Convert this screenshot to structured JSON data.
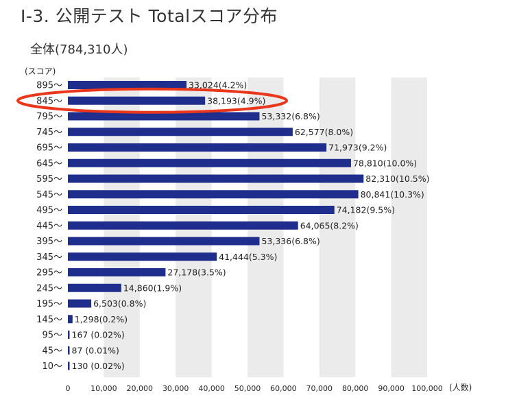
{
  "header": {
    "title": "Ⅰ-3. 公開テスト Totalスコア分布",
    "subtitle": "全体(784,310人)"
  },
  "colors": {
    "bar": "#1f2e8c",
    "band": "#ebebeb",
    "highlight": "#e8371b"
  },
  "chart_data": {
    "type": "bar",
    "orientation": "horizontal",
    "ylabel": "(スコア)",
    "xlabel": "(人数)",
    "xlim": [
      0,
      100000
    ],
    "xticks": [
      "0",
      "10,000",
      "20,000",
      "30,000",
      "40,000",
      "50,000",
      "60,000",
      "70,000",
      "80,000",
      "90,000",
      "100,000"
    ],
    "categories": [
      "895〜",
      "845〜",
      "795〜",
      "745〜",
      "695〜",
      "645〜",
      "595〜",
      "545〜",
      "495〜",
      "445〜",
      "395〜",
      "345〜",
      "295〜",
      "245〜",
      "195〜",
      "145〜",
      "95〜",
      "45〜",
      "10〜"
    ],
    "values": [
      33024,
      38193,
      53332,
      62577,
      71973,
      78810,
      82310,
      80841,
      74182,
      64065,
      53336,
      41444,
      27178,
      14860,
      6503,
      1298,
      167,
      87,
      130
    ],
    "labels": [
      "33,024(4.2%)",
      "38,193(4.9%)",
      "53,332(6.8%)",
      "62,577(8.0%)",
      "71,973(9.2%)",
      "78,810(10.0%)",
      "82,310(10.5%)",
      "80,841(10.3%)",
      "74,182(9.5%)",
      "64,065(8.2%)",
      "53,336(6.8%)",
      "41,444(5.3%)",
      "27,178(3.5%)",
      "14,860(1.9%)",
      "6,503(0.8%)",
      "1,298(0.2%)",
      "167 (0.02%)",
      "87 (0.01%)",
      "130 (0.02%)"
    ],
    "highlighted_category": "845〜",
    "grid": "alternating vertical bands"
  }
}
